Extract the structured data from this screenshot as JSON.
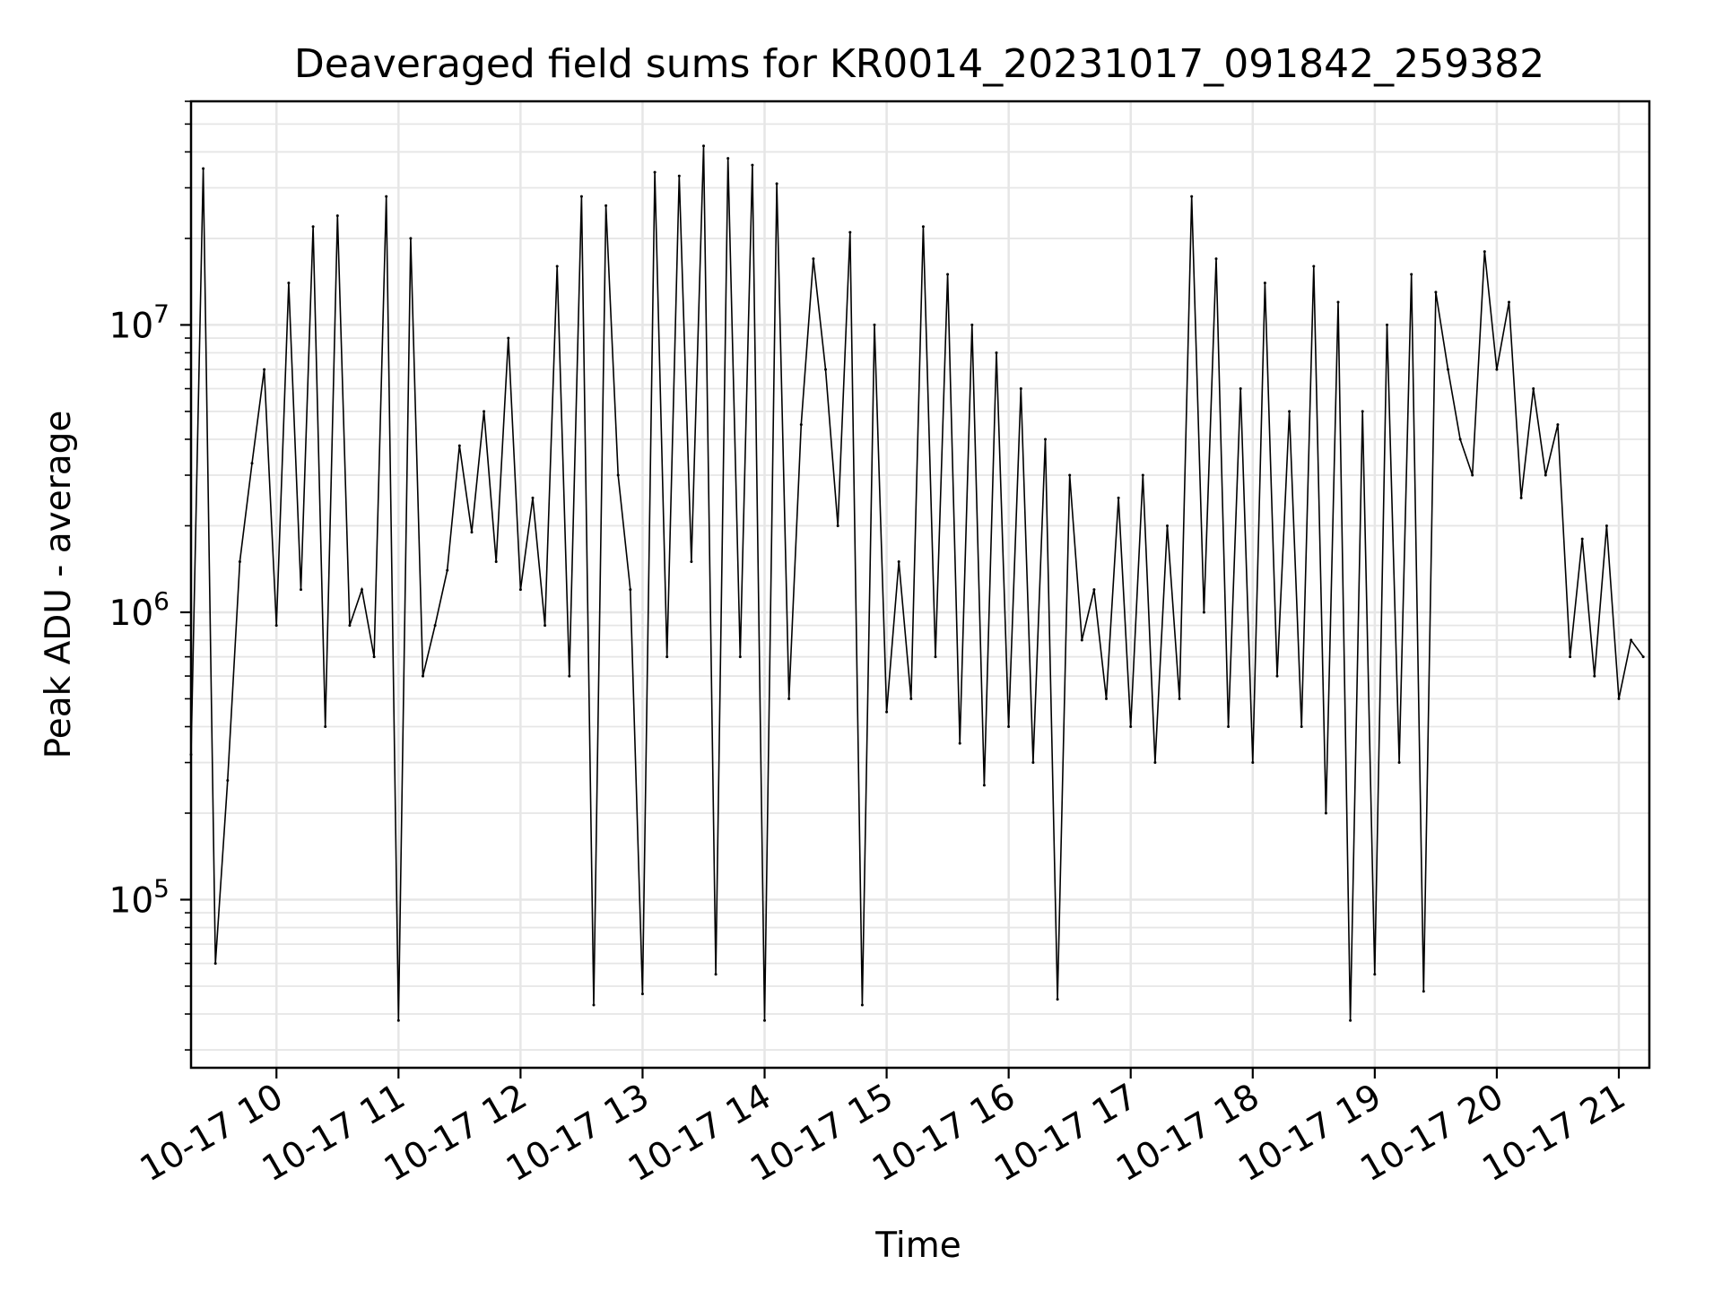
{
  "chart_data": {
    "type": "line",
    "title": "Deaveraged field sums for KR0014_20231017_091842_259382",
    "xlabel": "Time",
    "ylabel": "Peak ADU - average",
    "yscale": "log",
    "xlim": [
      "2023-10-17 09:18",
      "2023-10-17 21:15"
    ],
    "ylim": [
      26000,
      60000000
    ],
    "x_ticks": [
      {
        "time": "2023-10-17 10:00",
        "label": "10-17 10"
      },
      {
        "time": "2023-10-17 11:00",
        "label": "10-17 11"
      },
      {
        "time": "2023-10-17 12:00",
        "label": "10-17 12"
      },
      {
        "time": "2023-10-17 13:00",
        "label": "10-17 13"
      },
      {
        "time": "2023-10-17 14:00",
        "label": "10-17 14"
      },
      {
        "time": "2023-10-17 15:00",
        "label": "10-17 15"
      },
      {
        "time": "2023-10-17 16:00",
        "label": "10-17 16"
      },
      {
        "time": "2023-10-17 17:00",
        "label": "10-17 17"
      },
      {
        "time": "2023-10-17 18:00",
        "label": "10-17 18"
      },
      {
        "time": "2023-10-17 19:00",
        "label": "10-17 19"
      },
      {
        "time": "2023-10-17 20:00",
        "label": "10-17 20"
      },
      {
        "time": "2023-10-17 21:00",
        "label": "10-17 21"
      }
    ],
    "y_ticks": [
      {
        "value": 100000,
        "base": "10",
        "exponent": "5"
      },
      {
        "value": 1000000,
        "base": "10",
        "exponent": "6"
      },
      {
        "value": 10000000,
        "base": "10",
        "exponent": "7"
      }
    ],
    "grid": true,
    "line_color": "#000000",
    "grid_color": "#e6e6e6",
    "series": [
      {
        "x": [
          "2023-10-17 09:18",
          "2023-10-17 09:24",
          "2023-10-17 09:30",
          "2023-10-17 09:36",
          "2023-10-17 09:42",
          "2023-10-17 09:48",
          "2023-10-17 09:54",
          "2023-10-17 10:00",
          "2023-10-17 10:06",
          "2023-10-17 10:12",
          "2023-10-17 10:18",
          "2023-10-17 10:24",
          "2023-10-17 10:30",
          "2023-10-17 10:36",
          "2023-10-17 10:42",
          "2023-10-17 10:48",
          "2023-10-17 10:54",
          "2023-10-17 11:00",
          "2023-10-17 11:06",
          "2023-10-17 11:12",
          "2023-10-17 11:18",
          "2023-10-17 11:24",
          "2023-10-17 11:30",
          "2023-10-17 11:36",
          "2023-10-17 11:42",
          "2023-10-17 11:48",
          "2023-10-17 11:54",
          "2023-10-17 12:00",
          "2023-10-17 12:06",
          "2023-10-17 12:12",
          "2023-10-17 12:18",
          "2023-10-17 12:24",
          "2023-10-17 12:30",
          "2023-10-17 12:36",
          "2023-10-17 12:42",
          "2023-10-17 12:48",
          "2023-10-17 12:54",
          "2023-10-17 13:00",
          "2023-10-17 13:06",
          "2023-10-17 13:12",
          "2023-10-17 13:18",
          "2023-10-17 13:24",
          "2023-10-17 13:30",
          "2023-10-17 13:36",
          "2023-10-17 13:42",
          "2023-10-17 13:48",
          "2023-10-17 13:54",
          "2023-10-17 14:00",
          "2023-10-17 14:06",
          "2023-10-17 14:12",
          "2023-10-17 14:18",
          "2023-10-17 14:24",
          "2023-10-17 14:30",
          "2023-10-17 14:36",
          "2023-10-17 14:42",
          "2023-10-17 14:48",
          "2023-10-17 14:54",
          "2023-10-17 15:00",
          "2023-10-17 15:06",
          "2023-10-17 15:12",
          "2023-10-17 15:18",
          "2023-10-17 15:24",
          "2023-10-17 15:30",
          "2023-10-17 15:36",
          "2023-10-17 15:42",
          "2023-10-17 15:48",
          "2023-10-17 15:54",
          "2023-10-17 16:00",
          "2023-10-17 16:06",
          "2023-10-17 16:12",
          "2023-10-17 16:18",
          "2023-10-17 16:24",
          "2023-10-17 16:30",
          "2023-10-17 16:36",
          "2023-10-17 16:42",
          "2023-10-17 16:48",
          "2023-10-17 16:54",
          "2023-10-17 17:00",
          "2023-10-17 17:06",
          "2023-10-17 17:12",
          "2023-10-17 17:18",
          "2023-10-17 17:24",
          "2023-10-17 17:30",
          "2023-10-17 17:36",
          "2023-10-17 17:42",
          "2023-10-17 17:48",
          "2023-10-17 17:54",
          "2023-10-17 18:00",
          "2023-10-17 18:06",
          "2023-10-17 18:12",
          "2023-10-17 18:18",
          "2023-10-17 18:24",
          "2023-10-17 18:30",
          "2023-10-17 18:36",
          "2023-10-17 18:42",
          "2023-10-17 18:48",
          "2023-10-17 18:54",
          "2023-10-17 19:00",
          "2023-10-17 19:06",
          "2023-10-17 19:12",
          "2023-10-17 19:18",
          "2023-10-17 19:24",
          "2023-10-17 19:30",
          "2023-10-17 19:36",
          "2023-10-17 19:42",
          "2023-10-17 19:48",
          "2023-10-17 19:54",
          "2023-10-17 20:00",
          "2023-10-17 20:06",
          "2023-10-17 20:12",
          "2023-10-17 20:18",
          "2023-10-17 20:24",
          "2023-10-17 20:30",
          "2023-10-17 20:36",
          "2023-10-17 20:42",
          "2023-10-17 20:48",
          "2023-10-17 20:54",
          "2023-10-17 21:00",
          "2023-10-17 21:06",
          "2023-10-17 21:12"
        ],
        "y": [
          320000,
          35000000,
          60000,
          260000,
          1500000,
          3300000,
          7000000,
          900000,
          14000000,
          1200000,
          22000000,
          400000,
          24000000,
          900000,
          1200000,
          700000,
          28000000,
          38000,
          20000000,
          600000,
          900000,
          1400000,
          3800000,
          1900000,
          5000000,
          1500000,
          9000000,
          1200000,
          2500000,
          900000,
          16000000,
          600000,
          28000000,
          43000,
          26000000,
          3000000,
          1200000,
          47000,
          34000000,
          700000,
          33000000,
          1500000,
          42000000,
          55000,
          38000000,
          700000,
          36000000,
          38000,
          31000000,
          500000,
          4500000,
          17000000,
          7000000,
          2000000,
          21000000,
          43000,
          10000000,
          450000,
          1500000,
          500000,
          22000000,
          700000,
          15000000,
          350000,
          10000000,
          250000,
          8000000,
          400000,
          6000000,
          300000,
          4000000,
          45000,
          3000000,
          800000,
          1200000,
          500000,
          2500000,
          400000,
          3000000,
          300000,
          2000000,
          500000,
          28000000,
          1000000,
          17000000,
          400000,
          6000000,
          300000,
          14000000,
          600000,
          5000000,
          400000,
          16000000,
          200000,
          12000000,
          38000,
          5000000,
          55000,
          10000000,
          300000,
          15000000,
          48000,
          13000000,
          7000000,
          4000000,
          3000000,
          18000000,
          7000000,
          12000000,
          2500000,
          6000000,
          3000000,
          4500000,
          700000,
          1800000,
          600000,
          2000000,
          500000,
          800000,
          700000
        ]
      }
    ]
  }
}
